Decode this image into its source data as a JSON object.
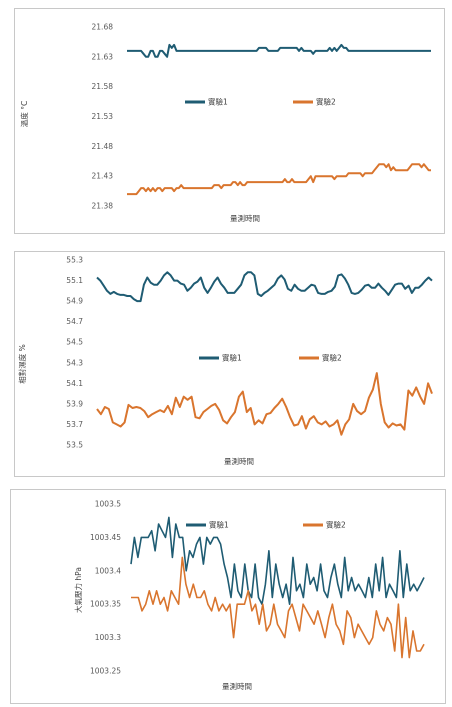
{
  "chart_data": [
    {
      "type": "line",
      "title": "",
      "xlabel": "量測時間",
      "ylabel": "溫度 °C",
      "ylim": [
        21.38,
        21.68
      ],
      "yticks": [
        "21.68",
        "21.63",
        "21.58",
        "21.53",
        "21.48",
        "21.43",
        "21.38"
      ],
      "grid": false,
      "legend": "center",
      "series": [
        {
          "name": "實驗1",
          "color": "#1f5c73",
          "values": [
            21.64,
            21.64,
            21.64,
            21.64,
            21.64,
            21.64,
            21.64,
            21.635,
            21.63,
            21.63,
            21.64,
            21.64,
            21.63,
            21.63,
            21.64,
            21.64,
            21.635,
            21.63,
            21.65,
            21.645,
            21.65,
            21.64,
            21.64,
            21.64,
            21.64,
            21.64,
            21.64,
            21.64,
            21.64,
            21.64,
            21.64,
            21.64,
            21.64,
            21.64,
            21.64,
            21.64,
            21.64,
            21.64,
            21.64,
            21.64,
            21.64,
            21.64,
            21.64,
            21.64,
            21.64,
            21.64,
            21.64,
            21.64,
            21.64,
            21.64,
            21.64,
            21.64,
            21.64,
            21.64,
            21.64,
            21.64,
            21.645,
            21.645,
            21.645,
            21.645,
            21.64,
            21.64,
            21.64,
            21.64,
            21.64,
            21.645,
            21.645,
            21.645,
            21.645,
            21.645,
            21.645,
            21.645,
            21.645,
            21.64,
            21.645,
            21.64,
            21.64,
            21.64,
            21.64,
            21.635,
            21.64,
            21.64,
            21.64,
            21.64,
            21.64,
            21.64,
            21.645,
            21.64,
            21.645,
            21.64,
            21.645,
            21.65,
            21.645,
            21.645,
            21.64,
            21.64,
            21.64,
            21.64,
            21.64,
            21.64,
            21.64,
            21.64,
            21.64,
            21.64,
            21.64,
            21.64,
            21.64,
            21.64,
            21.64,
            21.64,
            21.64,
            21.64,
            21.64,
            21.64,
            21.64,
            21.64,
            21.64,
            21.64,
            21.64,
            21.64,
            21.64,
            21.64,
            21.64,
            21.64,
            21.64,
            21.64,
            21.64,
            21.64,
            21.64,
            21.64
          ]
        },
        {
          "name": "實驗2",
          "color": "#d9752e",
          "values": [
            21.4,
            21.4,
            21.4,
            21.4,
            21.4,
            21.405,
            21.41,
            21.41,
            21.405,
            21.41,
            21.405,
            21.41,
            21.405,
            21.41,
            21.41,
            21.405,
            21.41,
            21.41,
            21.41,
            21.41,
            21.405,
            21.41,
            21.41,
            21.415,
            21.41,
            21.41,
            21.41,
            21.41,
            21.41,
            21.41,
            21.41,
            21.41,
            21.41,
            21.41,
            21.41,
            21.41,
            21.41,
            21.415,
            21.415,
            21.415,
            21.41,
            21.415,
            21.415,
            21.415,
            21.415,
            21.42,
            21.42,
            21.415,
            21.42,
            21.415,
            21.415,
            21.42,
            21.42,
            21.42,
            21.42,
            21.42,
            21.42,
            21.42,
            21.42,
            21.42,
            21.42,
            21.42,
            21.42,
            21.42,
            21.42,
            21.42,
            21.42,
            21.425,
            21.42,
            21.42,
            21.425,
            21.42,
            21.42,
            21.42,
            21.42,
            21.42,
            21.42,
            21.425,
            21.43,
            21.42,
            21.43,
            21.43,
            21.43,
            21.43,
            21.43,
            21.43,
            21.43,
            21.43,
            21.425,
            21.43,
            21.43,
            21.43,
            21.43,
            21.43,
            21.435,
            21.435,
            21.435,
            21.435,
            21.435,
            21.435,
            21.43,
            21.435,
            21.435,
            21.435,
            21.435,
            21.44,
            21.445,
            21.45,
            21.45,
            21.45,
            21.445,
            21.45,
            21.44,
            21.445,
            21.44,
            21.44,
            21.44,
            21.44,
            21.44,
            21.44,
            21.445,
            21.45,
            21.45,
            21.45,
            21.45,
            21.445,
            21.45,
            21.445,
            21.44,
            21.44
          ]
        }
      ]
    },
    {
      "type": "line",
      "title": "",
      "xlabel": "量測時間",
      "ylabel": "相對濕度 %",
      "ylim": [
        53.5,
        55.3
      ],
      "yticks": [
        "55.3",
        "55.1",
        "54.9",
        "54.7",
        "54.5",
        "54.3",
        "54.1",
        "53.9",
        "53.7",
        "53.5"
      ],
      "grid": false,
      "legend": "center",
      "series": [
        {
          "name": "實驗1",
          "color": "#1f5c73",
          "values": [
            55.13,
            55.1,
            55.05,
            55.0,
            54.97,
            54.99,
            54.97,
            54.96,
            54.96,
            54.95,
            54.95,
            54.92,
            54.9,
            54.9,
            55.06,
            55.13,
            55.08,
            55.06,
            55.06,
            55.1,
            55.15,
            55.18,
            55.15,
            55.1,
            55.1,
            55.07,
            55.06,
            55.0,
            55.03,
            55.07,
            55.09,
            55.13,
            55.03,
            54.98,
            55.03,
            55.09,
            55.13,
            55.07,
            55.03,
            54.98,
            54.98,
            54.98,
            55.02,
            55.06,
            55.15,
            55.18,
            55.18,
            55.15,
            54.97,
            54.95,
            54.98,
            55.0,
            55.03,
            55.06,
            55.12,
            55.15,
            55.11,
            55.02,
            55.0,
            55.06,
            55.02,
            55.0,
            55.0,
            55.03,
            55.06,
            55.05,
            54.98,
            54.97,
            54.97,
            54.99,
            55.0,
            55.04,
            55.15,
            55.16,
            55.12,
            55.06,
            54.98,
            54.97,
            54.98,
            55.01,
            55.05,
            55.06,
            55.03,
            55.03,
            55.07,
            55.03,
            55.0,
            54.96,
            55.01,
            55.06,
            55.07,
            55.07,
            55.02,
            55.05,
            54.98,
            55.03,
            55.03,
            55.06,
            55.1,
            55.13,
            55.1
          ]
        },
        {
          "name": "實驗2",
          "color": "#d9752e",
          "values": [
            53.85,
            53.8,
            53.87,
            53.85,
            53.72,
            53.7,
            53.68,
            53.72,
            53.89,
            53.86,
            53.87,
            53.86,
            53.83,
            53.77,
            53.8,
            53.82,
            53.84,
            53.82,
            53.88,
            53.8,
            53.96,
            53.87,
            53.97,
            53.94,
            53.97,
            53.77,
            53.76,
            53.82,
            53.85,
            53.88,
            53.9,
            53.84,
            53.74,
            53.71,
            53.77,
            53.82,
            53.97,
            54.02,
            53.82,
            53.86,
            53.7,
            53.74,
            53.71,
            53.8,
            53.81,
            53.86,
            53.9,
            53.95,
            53.87,
            53.77,
            53.69,
            53.7,
            53.78,
            53.66,
            53.75,
            53.78,
            53.72,
            53.7,
            53.73,
            53.68,
            53.7,
            53.74,
            53.6,
            53.7,
            53.75,
            53.9,
            53.83,
            53.8,
            53.83,
            53.96,
            54.04,
            54.2,
            53.9,
            53.72,
            53.67,
            53.71,
            53.69,
            53.7,
            53.65,
            54.03,
            53.98,
            54.06,
            53.97,
            53.9,
            54.1,
            54.0
          ]
        }
      ]
    },
    {
      "type": "line",
      "title": "",
      "xlabel": "量測時間",
      "ylabel": "大氣壓力 hPa",
      "ylim": [
        1003.25,
        1003.5
      ],
      "yticks": [
        "1003.5",
        "1003.45",
        "1003.4",
        "1003.35",
        "1003.3",
        "1003.25"
      ],
      "grid": false,
      "legend": "top",
      "series": [
        {
          "name": "實驗1",
          "color": "#1f5c73",
          "values": [
            1003.41,
            1003.45,
            1003.42,
            1003.45,
            1003.45,
            1003.45,
            1003.46,
            1003.43,
            1003.47,
            1003.46,
            1003.45,
            1003.48,
            1003.42,
            1003.47,
            1003.45,
            1003.45,
            1003.4,
            1003.43,
            1003.42,
            1003.44,
            1003.45,
            1003.41,
            1003.45,
            1003.44,
            1003.45,
            1003.45,
            1003.44,
            1003.41,
            1003.39,
            1003.36,
            1003.41,
            1003.37,
            1003.36,
            1003.41,
            1003.37,
            1003.36,
            1003.41,
            1003.36,
            1003.35,
            1003.38,
            1003.43,
            1003.36,
            1003.41,
            1003.38,
            1003.36,
            1003.38,
            1003.35,
            1003.42,
            1003.37,
            1003.38,
            1003.36,
            1003.41,
            1003.38,
            1003.39,
            1003.37,
            1003.41,
            1003.37,
            1003.36,
            1003.39,
            1003.41,
            1003.38,
            1003.36,
            1003.42,
            1003.37,
            1003.39,
            1003.37,
            1003.38,
            1003.37,
            1003.36,
            1003.39,
            1003.36,
            1003.41,
            1003.37,
            1003.42,
            1003.36,
            1003.38,
            1003.37,
            1003.36,
            1003.43,
            1003.36,
            1003.41,
            1003.37,
            1003.38,
            1003.37,
            1003.38,
            1003.39
          ]
        },
        {
          "name": "實驗2",
          "color": "#d9752e",
          "values": [
            1003.36,
            1003.36,
            1003.36,
            1003.34,
            1003.35,
            1003.37,
            1003.35,
            1003.37,
            1003.35,
            1003.36,
            1003.34,
            1003.37,
            1003.36,
            1003.35,
            1003.42,
            1003.38,
            1003.36,
            1003.38,
            1003.36,
            1003.36,
            1003.37,
            1003.35,
            1003.34,
            1003.36,
            1003.34,
            1003.35,
            1003.34,
            1003.35,
            1003.3,
            1003.35,
            1003.35,
            1003.35,
            1003.37,
            1003.34,
            1003.35,
            1003.32,
            1003.35,
            1003.31,
            1003.32,
            1003.35,
            1003.32,
            1003.31,
            1003.3,
            1003.34,
            1003.35,
            1003.33,
            1003.31,
            1003.35,
            1003.34,
            1003.33,
            1003.32,
            1003.34,
            1003.32,
            1003.3,
            1003.33,
            1003.35,
            1003.32,
            1003.31,
            1003.29,
            1003.34,
            1003.33,
            1003.3,
            1003.32,
            1003.31,
            1003.3,
            1003.29,
            1003.3,
            1003.34,
            1003.32,
            1003.31,
            1003.33,
            1003.32,
            1003.28,
            1003.35,
            1003.27,
            1003.33,
            1003.27,
            1003.31,
            1003.28,
            1003.28,
            1003.29
          ]
        }
      ]
    }
  ]
}
